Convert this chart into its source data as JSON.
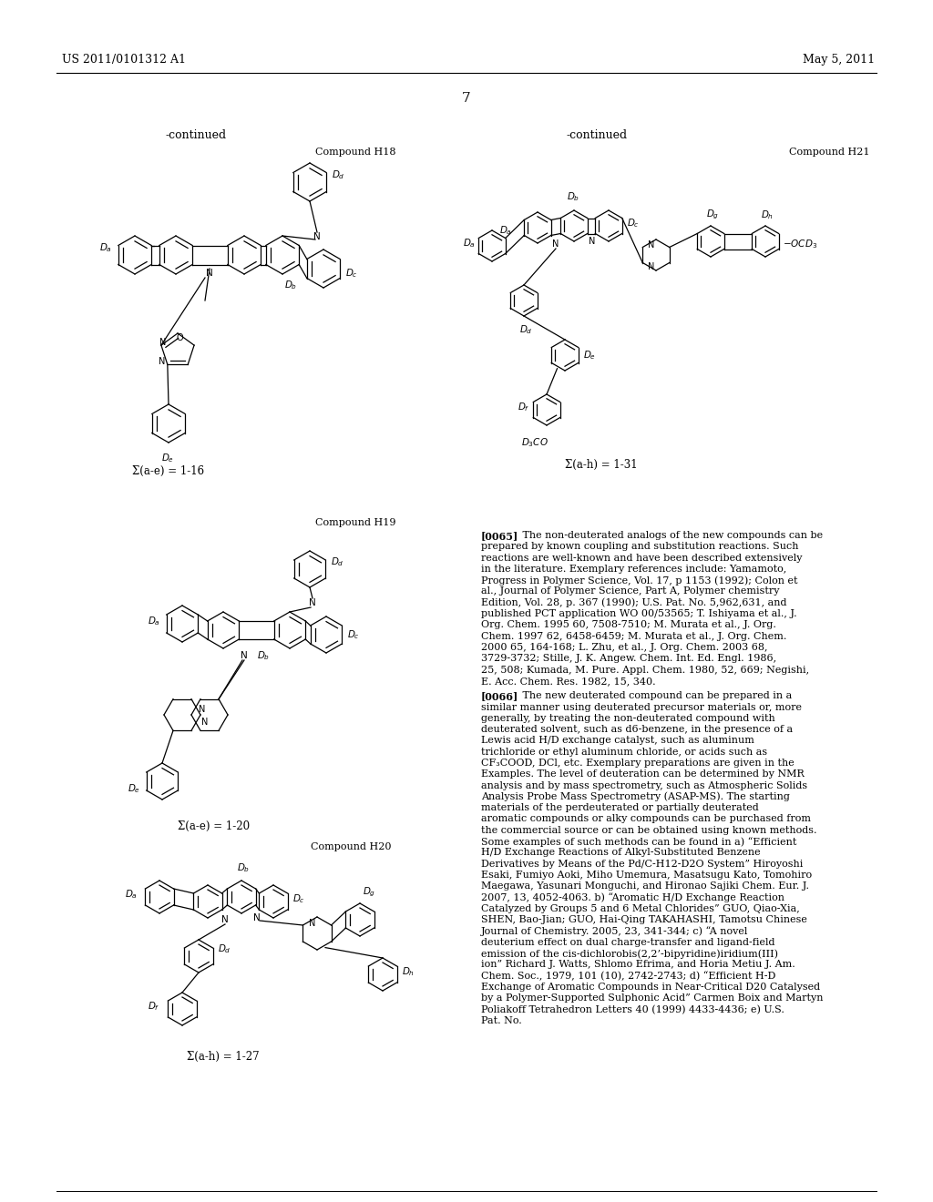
{
  "background_color": "#ffffff",
  "page_number": "7",
  "header_left": "US 2011/0101312 A1",
  "header_right": "May 5, 2011",
  "continued_label_1": "-continued",
  "continued_label_2": "-continued",
  "compound_h18": "Compound H18",
  "compound_h19": "Compound H19",
  "compound_h20": "Compound H20",
  "compound_h21": "Compound H21",
  "sigma_h18": "Σ(a-e) = 1-16",
  "sigma_h19": "Σ(a-e) = 1-20",
  "sigma_h20": "Σ(a-h) = 1-27",
  "sigma_h21": "Σ(a-h) = 1-31",
  "para0065": "[0065]   The non-deuterated analogs of the new compounds can be prepared by known coupling and substitution reactions. Such reactions are well-known and have been described extensively in the literature. Exemplary references include: Yamamoto, Progress in Polymer Science, Vol. 17, p 1153 (1992); Colon et al., Journal of Polymer Science, Part A, Polymer chemistry Edition, Vol. 28, p. 367 (1990); U.S. Pat. No.  5,962,631,  and  published  PCT  application  WO 00/53565; T. Ishiyama et al., J. Org. Chem. 1995 60, 7508-7510; M. Murata et al., J. Org. Chem. 1997 62, 6458-6459; M. Murata et al., J. Org. Chem. 2000 65, 164-168; L. Zhu, et al., J. Org. Chem. 2003 68, 3729-3732; Stille, J. K. Angew. Chem. Int. Ed. Engl. 1986, 25, 508; Kumada, M. Pure. Appl. Chem. 1980, 52, 669; Negishi, E. Acc. Chem. Res. 1982, 15, 340.",
  "para0066": "[0066]   The new deuterated compound can be prepared in a similar manner using deuterated precursor materials or, more generally, by treating the non-deuterated compound with deuterated solvent, such as d6-benzene, in the presence of a Lewis acid H/D exchange catalyst, such as aluminum trichloride or ethyl aluminum chloride, or acids such as CF₃COOD, DCl, etc. Exemplary preparations are given in the Examples. The level of deuteration can be determined by NMR analysis and by mass spectrometry, such as Atmospheric Solids Analysis Probe Mass Spectrometry (ASAP-MS). The starting materials of the perdeuterated or partially deuterated aromatic compounds or alky compounds can be purchased from the commercial source or can be obtained using known methods. Some examples of such methods can be found in a) “Efficient H/D Exchange Reactions of Alkyl-Substituted Benzene Derivatives by Means of the Pd/C-H12-D2O System” Hiroyoshi Esaki, Fumiyo Aoki, Miho Umemura, Masatsugu Kato, Tomohiro Maegawa, Yasunari Monguchi, and Hironao Sajiki Chem. Eur. J. 2007, 13, 4052-4063. b) “Aromatic H/D Exchange Reaction Catalyzed by Groups 5 and 6 Metal Chlorides” GUO, Qiao-Xia, SHEN, Bao-Jian; GUO, Hai-Qing TAKAHASHI, Tamotsu Chinese Journal of Chemistry. 2005, 23, 341-344; c) “A novel deuterium effect on dual charge-transfer and ligand-field emission of the cis-dichlorobis(2,2’-bipyridine)iridium(III) ion” Richard J. Watts, Shlomo Efrima, and Horia Metiu J. Am. Chem. Soc., 1979, 101 (10), 2742-2743; d) “Efficient H-D Exchange of Aromatic Compounds in Near-Critical D20 Catalysed by a Polymer-Supported Sulphonic Acid” Carmen Boix and Martyn Poliakoff Tetrahedron Letters 40 (1999) 4433-4436; e) U.S. Pat. No."
}
